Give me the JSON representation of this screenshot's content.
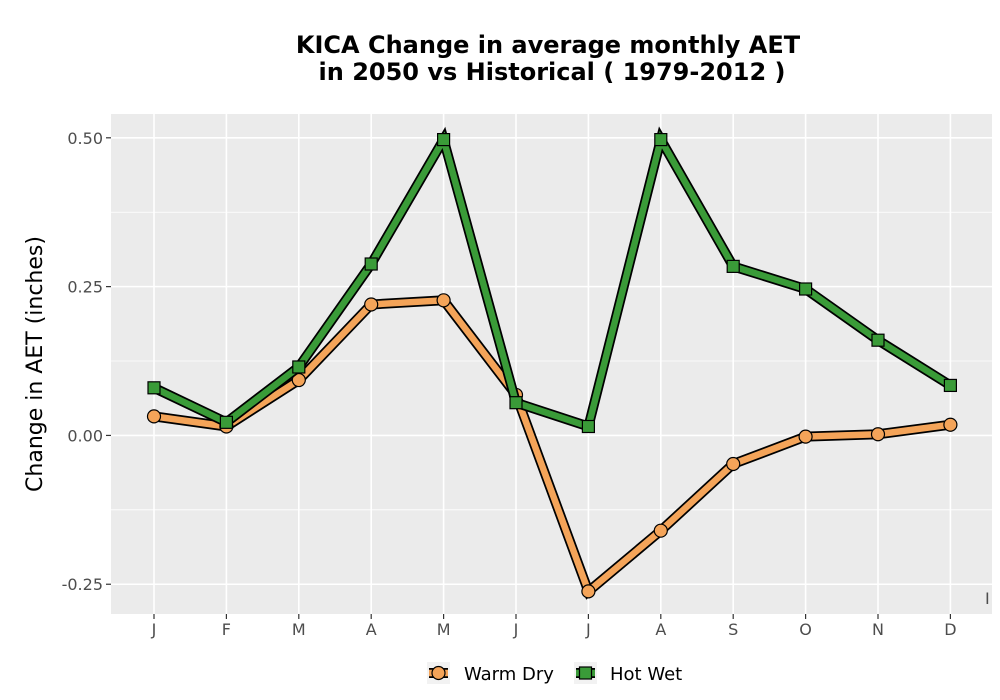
{
  "chart_data": {
    "type": "line",
    "title_line1": "KICA  Change in average monthly AET",
    "title_line2": "in 2050 vs Historical ( 1979-2012 )",
    "xlabel": "",
    "ylabel": "Change in AET (inches)",
    "categories": [
      "J",
      "F",
      "M",
      "A",
      "M",
      "J",
      "J",
      "A",
      "S",
      "O",
      "N",
      "D"
    ],
    "ylim": [
      -0.3,
      0.54
    ],
    "yticks": [
      -0.25,
      0.0,
      0.25,
      0.5
    ],
    "ytick_labels": [
      "-0.25",
      "0.00",
      "0.25",
      "0.50"
    ],
    "grid": true,
    "legend_position": "bottom",
    "stray_label": "I",
    "series": [
      {
        "name": "Warm Dry",
        "values": [
          0.032,
          0.015,
          0.093,
          0.22,
          0.227,
          0.068,
          -0.262,
          -0.16,
          -0.048,
          -0.002,
          0.002,
          0.018
        ],
        "color": "#f4a459",
        "marker": "circle"
      },
      {
        "name": "Hot Wet",
        "values": [
          0.08,
          0.022,
          0.115,
          0.288,
          0.497,
          0.055,
          0.015,
          0.497,
          0.284,
          0.246,
          0.16,
          0.084
        ],
        "color": "#3a9b38",
        "marker": "square"
      }
    ],
    "panel_background": "#ebebeb",
    "grid_color": "#ffffff"
  }
}
